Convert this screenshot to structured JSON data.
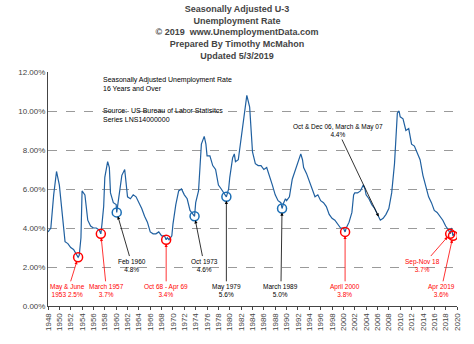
{
  "chart_data": {
    "type": "line",
    "title": "Seasonally Adjusted U-3\nUnemployment Rate",
    "subtitle": "© 2019  www.UnemploymentData.com\nPrepared By Timothy McMahon\nUpdated 5/3/2019",
    "texts": [
      "Seasonally Adjusted Unemployment Rate\n16 Years and Over",
      "Source:  US Bureau of Labor Statisitcs\nSeries LNS14000000"
    ],
    "xlim": [
      1948,
      2020
    ],
    "xticks": [
      1948,
      1950,
      1952,
      1954,
      1956,
      1958,
      1960,
      1962,
      1964,
      1966,
      1968,
      1970,
      1972,
      1974,
      1976,
      1978,
      1980,
      1982,
      1984,
      1986,
      1988,
      1990,
      1992,
      1994,
      1996,
      1998,
      2000,
      2002,
      2004,
      2006,
      2008,
      2010,
      2012,
      2014,
      2016,
      2018,
      2020
    ],
    "ylim": [
      0.0,
      0.12
    ],
    "yticks": [
      {
        "value": 0.0,
        "label": "0.00%"
      },
      {
        "value": 0.02,
        "label": "2.00%"
      },
      {
        "value": 0.04,
        "label": "4.00%"
      },
      {
        "value": 0.06,
        "label": "6.00%"
      },
      {
        "value": 0.08,
        "label": "8.00%"
      },
      {
        "value": 0.1,
        "label": "10.00%"
      },
      {
        "value": 0.12,
        "label": "12.00%"
      }
    ],
    "grid": true,
    "series": [
      {
        "type": "line",
        "color": "#2060a0",
        "x": [
          1948.0,
          1948.5,
          1949.0,
          1949.5,
          1950.0,
          1950.5,
          1951.0,
          1951.5,
          1952.0,
          1952.5,
          1953.0,
          1953.3,
          1953.5,
          1953.8,
          1954.0,
          1954.5,
          1955.0,
          1955.5,
          1956.0,
          1956.5,
          1957.0,
          1957.3,
          1957.5,
          1957.8,
          1958.0,
          1958.5,
          1958.8,
          1959.0,
          1959.5,
          1960.0,
          1960.1,
          1960.5,
          1961.0,
          1961.5,
          1961.8,
          1962.0,
          1962.5,
          1963.0,
          1963.5,
          1964.0,
          1964.5,
          1965.0,
          1965.5,
          1966.0,
          1966.5,
          1967.0,
          1967.5,
          1968.0,
          1968.5,
          1968.8,
          1969.0,
          1969.3,
          1969.5,
          1969.8,
          1970.0,
          1970.5,
          1971.0,
          1971.5,
          1972.0,
          1972.5,
          1973.0,
          1973.5,
          1973.8,
          1974.0,
          1974.5,
          1975.0,
          1975.5,
          1975.8,
          1976.0,
          1976.5,
          1977.0,
          1977.5,
          1978.0,
          1978.5,
          1979.0,
          1979.4,
          1979.5,
          1979.8,
          1980.0,
          1980.5,
          1980.8,
          1981.0,
          1981.5,
          1982.0,
          1982.5,
          1982.8,
          1983.0,
          1983.5,
          1983.8,
          1984.0,
          1984.5,
          1985.0,
          1985.5,
          1986.0,
          1986.5,
          1987.0,
          1987.5,
          1988.0,
          1988.5,
          1989.0,
          1989.2,
          1989.5,
          1989.8,
          1990.0,
          1990.5,
          1991.0,
          1991.5,
          1992.0,
          1992.5,
          1992.8,
          1993.0,
          1993.5,
          1994.0,
          1994.5,
          1995.0,
          1995.5,
          1996.0,
          1996.5,
          1997.0,
          1997.5,
          1998.0,
          1998.5,
          1999.0,
          1999.5,
          2000.0,
          2000.3,
          2000.5,
          2001.0,
          2001.5,
          2001.8,
          2002.0,
          2002.5,
          2003.0,
          2003.5,
          2003.8,
          2004.0,
          2004.5,
          2005.0,
          2005.5,
          2006.0,
          2006.5,
          2007.0,
          2007.5,
          2008.0,
          2008.5,
          2009.0,
          2009.5,
          2009.8,
          2010.0,
          2010.5,
          2011.0,
          2011.5,
          2012.0,
          2012.5,
          2013.0,
          2013.5,
          2014.0,
          2014.5,
          2015.0,
          2015.5,
          2016.0,
          2016.5,
          2017.0,
          2017.5,
          2018.0,
          2018.5,
          2018.8,
          2019.0,
          2019.3,
          2019.5
        ],
        "values": [
          0.038,
          0.04,
          0.057,
          0.069,
          0.062,
          0.047,
          0.033,
          0.032,
          0.03,
          0.029,
          0.026,
          0.025,
          0.026,
          0.035,
          0.059,
          0.057,
          0.044,
          0.041,
          0.04,
          0.04,
          0.039,
          0.037,
          0.042,
          0.051,
          0.066,
          0.074,
          0.071,
          0.058,
          0.053,
          0.052,
          0.048,
          0.056,
          0.067,
          0.07,
          0.063,
          0.056,
          0.055,
          0.057,
          0.056,
          0.053,
          0.05,
          0.046,
          0.043,
          0.038,
          0.037,
          0.037,
          0.038,
          0.036,
          0.036,
          0.034,
          0.035,
          0.034,
          0.035,
          0.036,
          0.042,
          0.052,
          0.059,
          0.06,
          0.057,
          0.055,
          0.049,
          0.047,
          0.046,
          0.053,
          0.059,
          0.083,
          0.087,
          0.083,
          0.077,
          0.077,
          0.072,
          0.07,
          0.062,
          0.06,
          0.058,
          0.056,
          0.057,
          0.06,
          0.066,
          0.076,
          0.078,
          0.074,
          0.075,
          0.087,
          0.096,
          0.105,
          0.108,
          0.102,
          0.086,
          0.079,
          0.073,
          0.072,
          0.072,
          0.07,
          0.071,
          0.067,
          0.062,
          0.057,
          0.054,
          0.053,
          0.05,
          0.053,
          0.055,
          0.054,
          0.056,
          0.065,
          0.069,
          0.074,
          0.078,
          0.075,
          0.071,
          0.068,
          0.064,
          0.06,
          0.056,
          0.057,
          0.054,
          0.053,
          0.051,
          0.047,
          0.045,
          0.044,
          0.042,
          0.04,
          0.04,
          0.038,
          0.04,
          0.043,
          0.048,
          0.057,
          0.058,
          0.058,
          0.059,
          0.062,
          0.06,
          0.057,
          0.055,
          0.052,
          0.05,
          0.047,
          0.044,
          0.045,
          0.047,
          0.05,
          0.058,
          0.073,
          0.099,
          0.1,
          0.097,
          0.096,
          0.09,
          0.091,
          0.083,
          0.082,
          0.078,
          0.075,
          0.067,
          0.062,
          0.056,
          0.053,
          0.049,
          0.048,
          0.046,
          0.044,
          0.041,
          0.039,
          0.037,
          0.04,
          0.036,
          0.037
        ]
      },
      {
        "type": "scatter",
        "marker": "circle-open",
        "color": "red",
        "x": [
          1953.3,
          1957.3,
          1968.8,
          2000.3,
          2018.8,
          2019.3
        ],
        "values": [
          0.025,
          0.037,
          0.034,
          0.038,
          0.037,
          0.036
        ]
      },
      {
        "type": "scatter",
        "marker": "circle-open",
        "color": "#1a6eb5",
        "x": [
          1960.1,
          1973.8,
          1979.4,
          1989.2
        ],
        "values": [
          0.048,
          0.046,
          0.056,
          0.05
        ]
      }
    ],
    "annotations": [
      {
        "text": "May & June\n1953 2.5%",
        "x": 1953.3,
        "y": 0.025,
        "color": "red"
      },
      {
        "text": "March 1957\n3.7%",
        "x": 1957.3,
        "y": 0.037,
        "color": "red"
      },
      {
        "text": "Oct 68 - Apr 69\n3.4%",
        "x": 1968.8,
        "y": 0.034,
        "color": "red"
      },
      {
        "text": "April 2000\n3.8%",
        "x": 2000.3,
        "y": 0.038,
        "color": "red"
      },
      {
        "text": "Sep-Nov 18\n3.7%",
        "x": 2018.8,
        "y": 0.037,
        "color": "red"
      },
      {
        "text": "Apr 2019\n3.6%",
        "x": 2019.3,
        "y": 0.036,
        "color": "red"
      },
      {
        "text": "Feb 1960\n4.8%",
        "x": 1960.1,
        "y": 0.048,
        "color": "black"
      },
      {
        "text": "Oct 1973\n4.6%",
        "x": 1973.8,
        "y": 0.046,
        "color": "black"
      },
      {
        "text": "May 1979\n5.6%",
        "x": 1979.4,
        "y": 0.056,
        "color": "black"
      },
      {
        "text": "March 1989\n5.0%",
        "x": 1989.2,
        "y": 0.05,
        "color": "black"
      },
      {
        "text": "Oct & Dec 06, March & May 07\n4.4%",
        "x": 2006.5,
        "y": 0.044,
        "color": "black"
      }
    ]
  }
}
